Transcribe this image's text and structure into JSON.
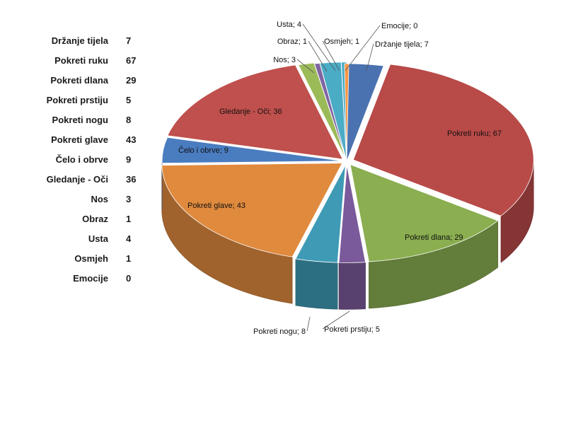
{
  "table": {
    "rows": [
      {
        "label": "Držanje tijela",
        "value": "7"
      },
      {
        "label": "Pokreti ruku",
        "value": "67"
      },
      {
        "label": "Pokreti dlana",
        "value": "29"
      },
      {
        "label": "Pokreti prstiju",
        "value": "5"
      },
      {
        "label": "Pokreti nogu",
        "value": "8"
      },
      {
        "label": "Pokreti glave",
        "value": "43"
      },
      {
        "label": "Čelo i obrve",
        "value": "9"
      },
      {
        "label": "Gledanje - Oči",
        "value": "36"
      },
      {
        "label": "Nos",
        "value": "3"
      },
      {
        "label": "Obraz",
        "value": "1"
      },
      {
        "label": "Usta",
        "value": "4"
      },
      {
        "label": "Osmjeh",
        "value": "1"
      },
      {
        "label": "Emocije",
        "value": "0"
      }
    ]
  },
  "chart_data": {
    "type": "pie",
    "style": "3d-pie",
    "title": "",
    "categories": [
      "Držanje tijela",
      "Pokreti ruku",
      "Pokreti dlana",
      "Pokreti prstiju",
      "Pokreti nogu",
      "Pokreti glave",
      "Čelo i obrve",
      "Gledanje - Oči",
      "Nos",
      "Obraz",
      "Usta",
      "Osmjeh",
      "Emocije"
    ],
    "values": [
      7,
      67,
      29,
      5,
      8,
      43,
      9,
      36,
      3,
      1,
      4,
      1,
      0
    ],
    "data_labels": [
      "Držanje tijela; 7",
      "Pokreti ruku; 67",
      "Pokreti dlana; 29",
      "Pokreti prstiju; 5",
      "Pokreti nogu; 8",
      "Pokreti glave; 43",
      "Čelo i obrve; 9",
      "Gledanje - Oči; 36",
      "Nos; 3",
      "Obraz; 1",
      "Usta; 4",
      "Osmjeh; 1",
      "Emocije; 0"
    ],
    "colors": [
      "#4a72b0",
      "#b84a48",
      "#8aae50",
      "#7a5a9a",
      "#3e9ab5",
      "#e08a3e",
      "#4a7cc0",
      "#c0504d",
      "#9bbb59",
      "#8064a2",
      "#4bacc6",
      "#4bacc6",
      "#f79646"
    ],
    "legend": "none"
  }
}
